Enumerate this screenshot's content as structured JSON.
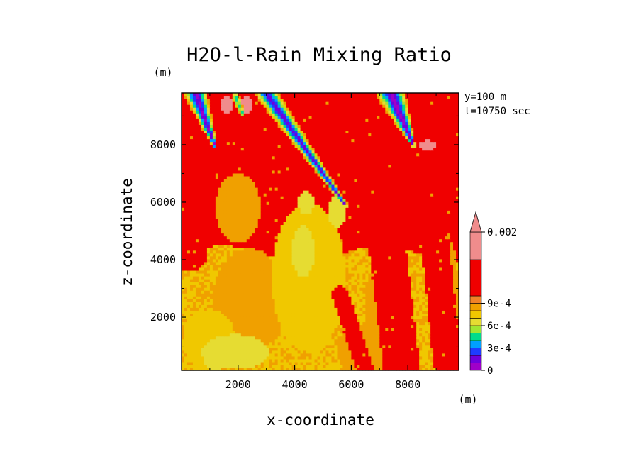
{
  "chart_data": {
    "type": "heatmap",
    "title": "H2O-l-Rain Mixing Ratio",
    "xlabel": "x-coordinate",
    "ylabel": "z-coordinate",
    "x_unit": "(m)",
    "y_unit": "(m)",
    "annotations": [
      "y=100 m",
      "t=10750 sec"
    ],
    "xlim": [
      0,
      9800
    ],
    "ylim": [
      150,
      9800
    ],
    "xticks": [
      2000,
      4000,
      6000,
      8000
    ],
    "yticks": [
      2000,
      4000,
      6000,
      8000
    ],
    "xtick_labels": [
      "2000",
      "4000",
      "6000",
      "8000"
    ],
    "ytick_labels": [
      "2000",
      "4000",
      "6000",
      "8000"
    ],
    "legend_position": "right",
    "colorbar": {
      "levels": [
        0,
        0.0001,
        0.0002,
        0.0003,
        0.0004,
        0.0005,
        0.0006,
        0.0007,
        0.0008,
        0.0009,
        0.001,
        0.002
      ],
      "colors": [
        "#a000c8",
        "#6e00dc",
        "#1e3cff",
        "#00a0ff",
        "#00dc8c",
        "#a0e632",
        "#e6dc32",
        "#f0c800",
        "#f0a000",
        "#f08228",
        "#f00000",
        "#f08c8c"
      ],
      "labels": [
        "0",
        "3e-4",
        "6e-4",
        "9e-4",
        "0.002"
      ],
      "label_levels": [
        0,
        0.0003,
        0.0006,
        0.0009,
        0.002
      ],
      "extend": "max"
    },
    "field": {
      "x_start": 0,
      "x_end": 9800,
      "z_start": 150,
      "z_end": 9800,
      "background_value": 0.0011,
      "low_level_value": 0.00075,
      "low_level_top": 4200,
      "orange_patches": [
        {
          "x": 2400,
          "z": 2600,
          "rx": 1300,
          "rz": 1800,
          "v": 0.00082
        },
        {
          "x": 4500,
          "z": 3400,
          "rx": 1300,
          "rz": 2600,
          "v": 0.00078
        },
        {
          "x": 1000,
          "z": 1200,
          "rx": 900,
          "rz": 1100,
          "v": 0.00077
        },
        {
          "x": 6400,
          "z": 800,
          "rx": 900,
          "rz": 900,
          "v": 0.00081
        },
        {
          "x": 9300,
          "z": 2500,
          "rx": 500,
          "rz": 2500,
          "v": 0.00082
        },
        {
          "x": 2000,
          "z": 5800,
          "rx": 800,
          "rz": 1200,
          "v": 0.00085
        },
        {
          "x": 7000,
          "z": 2400,
          "rx": 500,
          "rz": 1600,
          "v": 0.00086
        }
      ],
      "yellow_patches": [
        {
          "x": 1900,
          "z": 800,
          "rx": 1200,
          "rz": 600,
          "v": 0.00065
        },
        {
          "x": 4300,
          "z": 4300,
          "rx": 400,
          "rz": 900,
          "v": 0.00068
        },
        {
          "x": 4400,
          "z": 6000,
          "rx": 300,
          "rz": 400,
          "v": 0.00068
        },
        {
          "x": 5500,
          "z": 5700,
          "rx": 300,
          "rz": 600,
          "v": 0.00062
        },
        {
          "x": 1200,
          "z": 500,
          "rx": 400,
          "rz": 350,
          "v": 0.00066
        }
      ],
      "red_streaks": [
        {
          "x0": 7800,
          "z0": 150,
          "x1": 6600,
          "z1": 9800,
          "w": 650,
          "v": 0.0011
        },
        {
          "x0": 9400,
          "z0": 500,
          "x1": 8400,
          "z1": 9800,
          "w": 500,
          "v": 0.0011
        },
        {
          "x0": 300,
          "z0": 4200,
          "x1": 600,
          "z1": 9800,
          "w": 600,
          "v": 0.0011
        },
        {
          "x0": 6500,
          "z0": 150,
          "x1": 5600,
          "z1": 2800,
          "w": 300,
          "v": 0.0011
        }
      ],
      "pink_patches": [
        {
          "x": 1600,
          "z": 9400,
          "rx": 250,
          "rz": 300,
          "v": 0.0025
        },
        {
          "x": 2300,
          "z": 9400,
          "rx": 250,
          "rz": 300,
          "v": 0.0025
        },
        {
          "x": 8700,
          "z": 8000,
          "rx": 300,
          "rz": 180,
          "v": 0.0025
        }
      ],
      "plumes": [
        {
          "x0": 500,
          "z0": 9800,
          "x1": 1200,
          "z1": 7900,
          "w0": 420,
          "w1": 60,
          "vmin": 5e-05
        },
        {
          "x0": 3000,
          "z0": 9800,
          "x1": 5800,
          "z1": 5900,
          "w0": 380,
          "w1": 80,
          "vmin": 0.00012
        },
        {
          "x0": 7400,
          "z0": 9800,
          "x1": 8200,
          "z1": 8000,
          "w0": 520,
          "w1": 80,
          "vmin": 3e-05
        },
        {
          "x0": 1900,
          "z0": 9700,
          "x1": 2200,
          "z1": 9000,
          "w0": 150,
          "w1": 60,
          "vmin": 0.0004
        }
      ]
    }
  }
}
